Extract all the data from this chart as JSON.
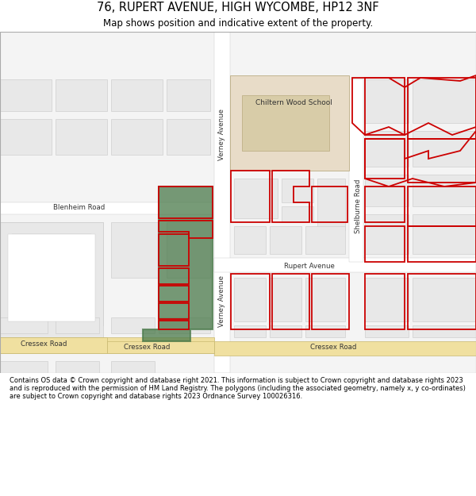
{
  "title": "76, RUPERT AVENUE, HIGH WYCOMBE, HP12 3NF",
  "subtitle": "Map shows position and indicative extent of the property.",
  "footer": "Contains OS data © Crown copyright and database right 2021. This information is subject to Crown copyright and database rights 2023 and is reproduced with the permission of HM Land Registry. The polygons (including the associated geometry, namely x, y co-ordinates) are subject to Crown copyright and database rights 2023 Ordnance Survey 100026316.",
  "bg_color": "#ffffff",
  "map_bg": "#ffffff",
  "building_fill": "#e8e8e8",
  "building_stroke": "#c8c8c8",
  "school_fill": "#e8dcc8",
  "school_inner_fill": "#d8cca8",
  "property_outline_color": "#cc0000",
  "plot_fill_color": "#4a7a4a",
  "road_yellow": "#f0e0a0",
  "road_yellow_stroke": "#c8b870",
  "road_bg": "#f0f0f0",
  "road_stroke": "#c8c8c8",
  "text_color": "#333333",
  "title_fontsize": 10.5,
  "subtitle_fontsize": 8.5,
  "footer_fontsize": 6.0,
  "label_fontsize": 6.2
}
